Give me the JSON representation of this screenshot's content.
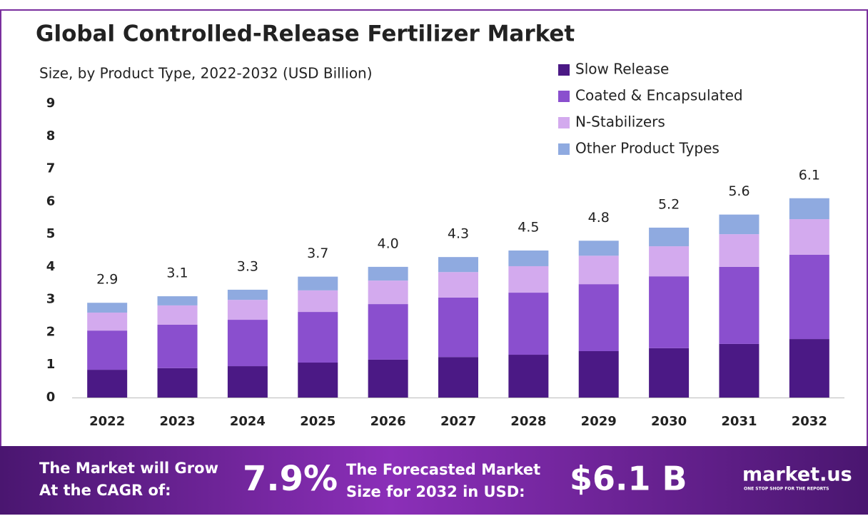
{
  "chart_data": {
    "type": "stacked_bar",
    "title": "Global Controlled-Release Fertilizer Market",
    "subtitle": "Size, by Product Type, 2022-2032 (USD Billion)",
    "categories": [
      "2022",
      "2023",
      "2024",
      "2025",
      "2026",
      "2027",
      "2028",
      "2029",
      "2030",
      "2031",
      "2032"
    ],
    "series": [
      {
        "name": "Slow Release",
        "color": "#4b1985",
        "values": [
          0.85,
          0.9,
          0.96,
          1.07,
          1.16,
          1.24,
          1.31,
          1.42,
          1.51,
          1.64,
          1.79
        ]
      },
      {
        "name": "Coated & Encapsulated",
        "color": "#8a4fce",
        "values": [
          1.2,
          1.33,
          1.42,
          1.55,
          1.7,
          1.82,
          1.9,
          2.05,
          2.2,
          2.36,
          2.58
        ]
      },
      {
        "name": "N-Stabilizers",
        "color": "#d3aaee",
        "values": [
          0.55,
          0.59,
          0.61,
          0.66,
          0.72,
          0.78,
          0.81,
          0.87,
          0.92,
          1.0,
          1.09
        ]
      },
      {
        "name": "Other Product Types",
        "color": "#8faae0",
        "values": [
          0.3,
          0.28,
          0.31,
          0.42,
          0.42,
          0.46,
          0.48,
          0.46,
          0.57,
          0.6,
          0.64
        ]
      }
    ],
    "totals": {
      "values": [
        2.9,
        3.1,
        3.3,
        3.7,
        4.0,
        4.3,
        4.5,
        4.8,
        5.2,
        5.6,
        6.1
      ],
      "value_labels": [
        "2.9",
        "3.1",
        "3.3",
        "3.7",
        "4.0",
        "4.3",
        "4.5",
        "4.8",
        "5.2",
        "5.6",
        "6.1"
      ]
    },
    "ylim": [
      0,
      9
    ],
    "yticks": [
      0,
      1,
      2,
      3,
      4,
      5,
      6,
      7,
      8,
      9
    ],
    "grid": false,
    "legend": "top-right"
  },
  "footer": {
    "cagr_text": [
      "The Market will Grow",
      "At the CAGR of:"
    ],
    "cagr": "7.9%",
    "forecast_text": [
      "The Forecasted Market",
      "Size for 2032 in USD:"
    ],
    "forecast": "$6.1 B",
    "brand": "market.us",
    "tagline": "ONE STOP SHOP FOR THE REPORTS"
  }
}
